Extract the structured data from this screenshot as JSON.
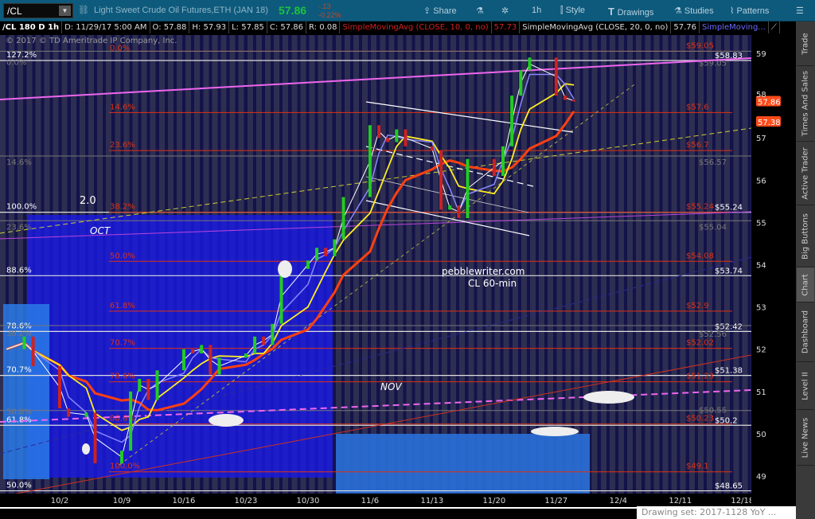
{
  "toolbar": {
    "symbol": "/CL",
    "description": "Light Sweet Crude Oil Futures,ETH (JAN 18)",
    "last": "57.86",
    "change": "-.13",
    "change_pct": "-0.22%",
    "buttons": [
      "Share",
      "1h",
      "Style",
      "Drawings",
      "Studies",
      "Patterns"
    ]
  },
  "infobar": {
    "chart_id": "/CL 180 D 1h",
    "date": "D: 11/29/17 5:00 AM",
    "open": "O: 57.88",
    "high": "H: 57.93",
    "low": "L: 57.85",
    "close": "C: 57.86",
    "range": "R: 0.08",
    "sma10_label": "SimpleMovingAvg (CLOSE, 10, 0, no)",
    "sma10_value": "57.73",
    "sma20_label": "SimpleMovingAvg (CLOSE, 20, 0, no)",
    "sma20_value": "57.76",
    "sma3_label": "SimpleMoving..."
  },
  "copyright": "© 2017 © TD Ameritrade IP Company, Inc.",
  "side_tabs": [
    "Trade",
    "Times And Sales",
    "Active Trader",
    "Big Buttons",
    "Chart",
    "Dashboard",
    "Level II",
    "Live News"
  ],
  "drawing_set": "Drawing set: 2017-1128 YoY ...",
  "colors": {
    "price_up": "#22cc22",
    "price_down": "#cc2222",
    "sma10": "#ffffff",
    "sma20": "#8888ff",
    "sma50": "#ffee22",
    "sma100": "#ff4010",
    "fib_red": "#e03010",
    "fib_white": "#ffffff",
    "fib_gray": "#888888"
  },
  "chart_data": {
    "type": "line",
    "ylim": [
      48.6,
      59.4
    ],
    "y_ticks": [
      "59",
      "58",
      "57",
      "56",
      "55",
      "54",
      "53",
      "52",
      "51",
      "50",
      "49"
    ],
    "x_ticks": [
      "10/2",
      "10/9",
      "10/16",
      "10/23",
      "10/30",
      "11/6",
      "11/13",
      "11/20",
      "11/27",
      "12/4",
      "12/11",
      "12/18"
    ],
    "series": [
      {
        "x": [
          "9/26",
          "9/28",
          "9/29",
          "10/2",
          "10/3",
          "10/5",
          "10/6",
          "10/9",
          "10/10",
          "10/11",
          "10/12",
          "10/13",
          "10/16",
          "10/17",
          "10/18",
          "10/19",
          "10/20",
          "10/23",
          "10/24",
          "10/25",
          "10/26",
          "10/27",
          "10/30",
          "10/31",
          "11/1",
          "11/2",
          "11/3",
          "11/6",
          "11/7",
          "11/8",
          "11/9",
          "11/10",
          "11/13",
          "11/14",
          "11/15",
          "11/16",
          "11/17",
          "11/20",
          "11/21",
          "11/22",
          "11/23",
          "11/24",
          "11/27",
          "11/28",
          "11/29"
        ],
        "values": [
          52.0,
          52.3,
          51.6,
          50.6,
          50.4,
          50.5,
          49.3,
          49.6,
          51.0,
          51.3,
          50.8,
          51.5,
          52.0,
          51.9,
          52.1,
          51.4,
          51.8,
          51.9,
          52.3,
          52.1,
          52.6,
          53.9,
          54.1,
          54.4,
          54.2,
          54.6,
          55.6,
          57.3,
          57.0,
          56.9,
          57.2,
          56.8,
          56.7,
          55.3,
          55.4,
          55.1,
          56.5,
          56.1,
          56.8,
          58.0,
          58.6,
          58.9,
          58.0,
          57.9,
          57.86
        ]
      }
    ],
    "price_markers": [
      "57.86",
      "57.38"
    ],
    "fib_red": [
      {
        "pct": "0.0%",
        "price": 59.05,
        "label": "$59.05"
      },
      {
        "pct": "14.6%",
        "price": 57.6,
        "label": "$57.6"
      },
      {
        "pct": "23.6%",
        "price": 56.7,
        "label": "$56.7"
      },
      {
        "pct": "38.2%",
        "price": 55.24,
        "label": "$55.24"
      },
      {
        "pct": "50.0%",
        "price": 54.08,
        "label": "$54.08"
      },
      {
        "pct": "61.8%",
        "price": 52.9,
        "label": "$52.9"
      },
      {
        "pct": "70.7%",
        "price": 52.02,
        "label": "$52.02"
      },
      {
        "pct": "78.6%",
        "price": 51.23,
        "label": "$51.23"
      },
      {
        "pct": "88.6%",
        "price": 50.23,
        "label": "$50.23"
      },
      {
        "pct": "100.0%",
        "price": 49.1,
        "label": "$49.1"
      }
    ],
    "fib_white": [
      {
        "pct": "127.2%",
        "price": 58.83,
        "label": "$58.83"
      },
      {
        "pct": "100.0%",
        "price": 55.24,
        "label": "$55.24"
      },
      {
        "pct": "88.6%",
        "price": 53.74,
        "label": "$53.74"
      },
      {
        "pct": "78.6%",
        "price": 52.42,
        "label": "$52.42"
      },
      {
        "pct": "70.7%",
        "price": 51.38,
        "label": "$51.38"
      },
      {
        "pct": "61.8%",
        "price": 50.2,
        "label": "$50.2"
      },
      {
        "pct": "50.0%",
        "price": 48.65,
        "label": "$48.65"
      }
    ],
    "fib_gray": [
      {
        "pct": "0.0%",
        "price": 59.05,
        "label": "$59.05"
      },
      {
        "pct": "14.6%",
        "price": 56.57,
        "label": "$56.57"
      },
      {
        "pct": "23.6%",
        "price": 55.04,
        "label": "$55.04"
      },
      {
        "pct": "38.2%",
        "price": 52.56,
        "label": "$52.56"
      },
      {
        "pct": "50.0%",
        "price": 50.55,
        "label": "$50.55"
      }
    ],
    "annotations": {
      "site": "pebblewriter.com",
      "timeframe": "CL 60-min",
      "oct": "OCT",
      "nov": "NOV",
      "ratio": "2.0"
    }
  }
}
